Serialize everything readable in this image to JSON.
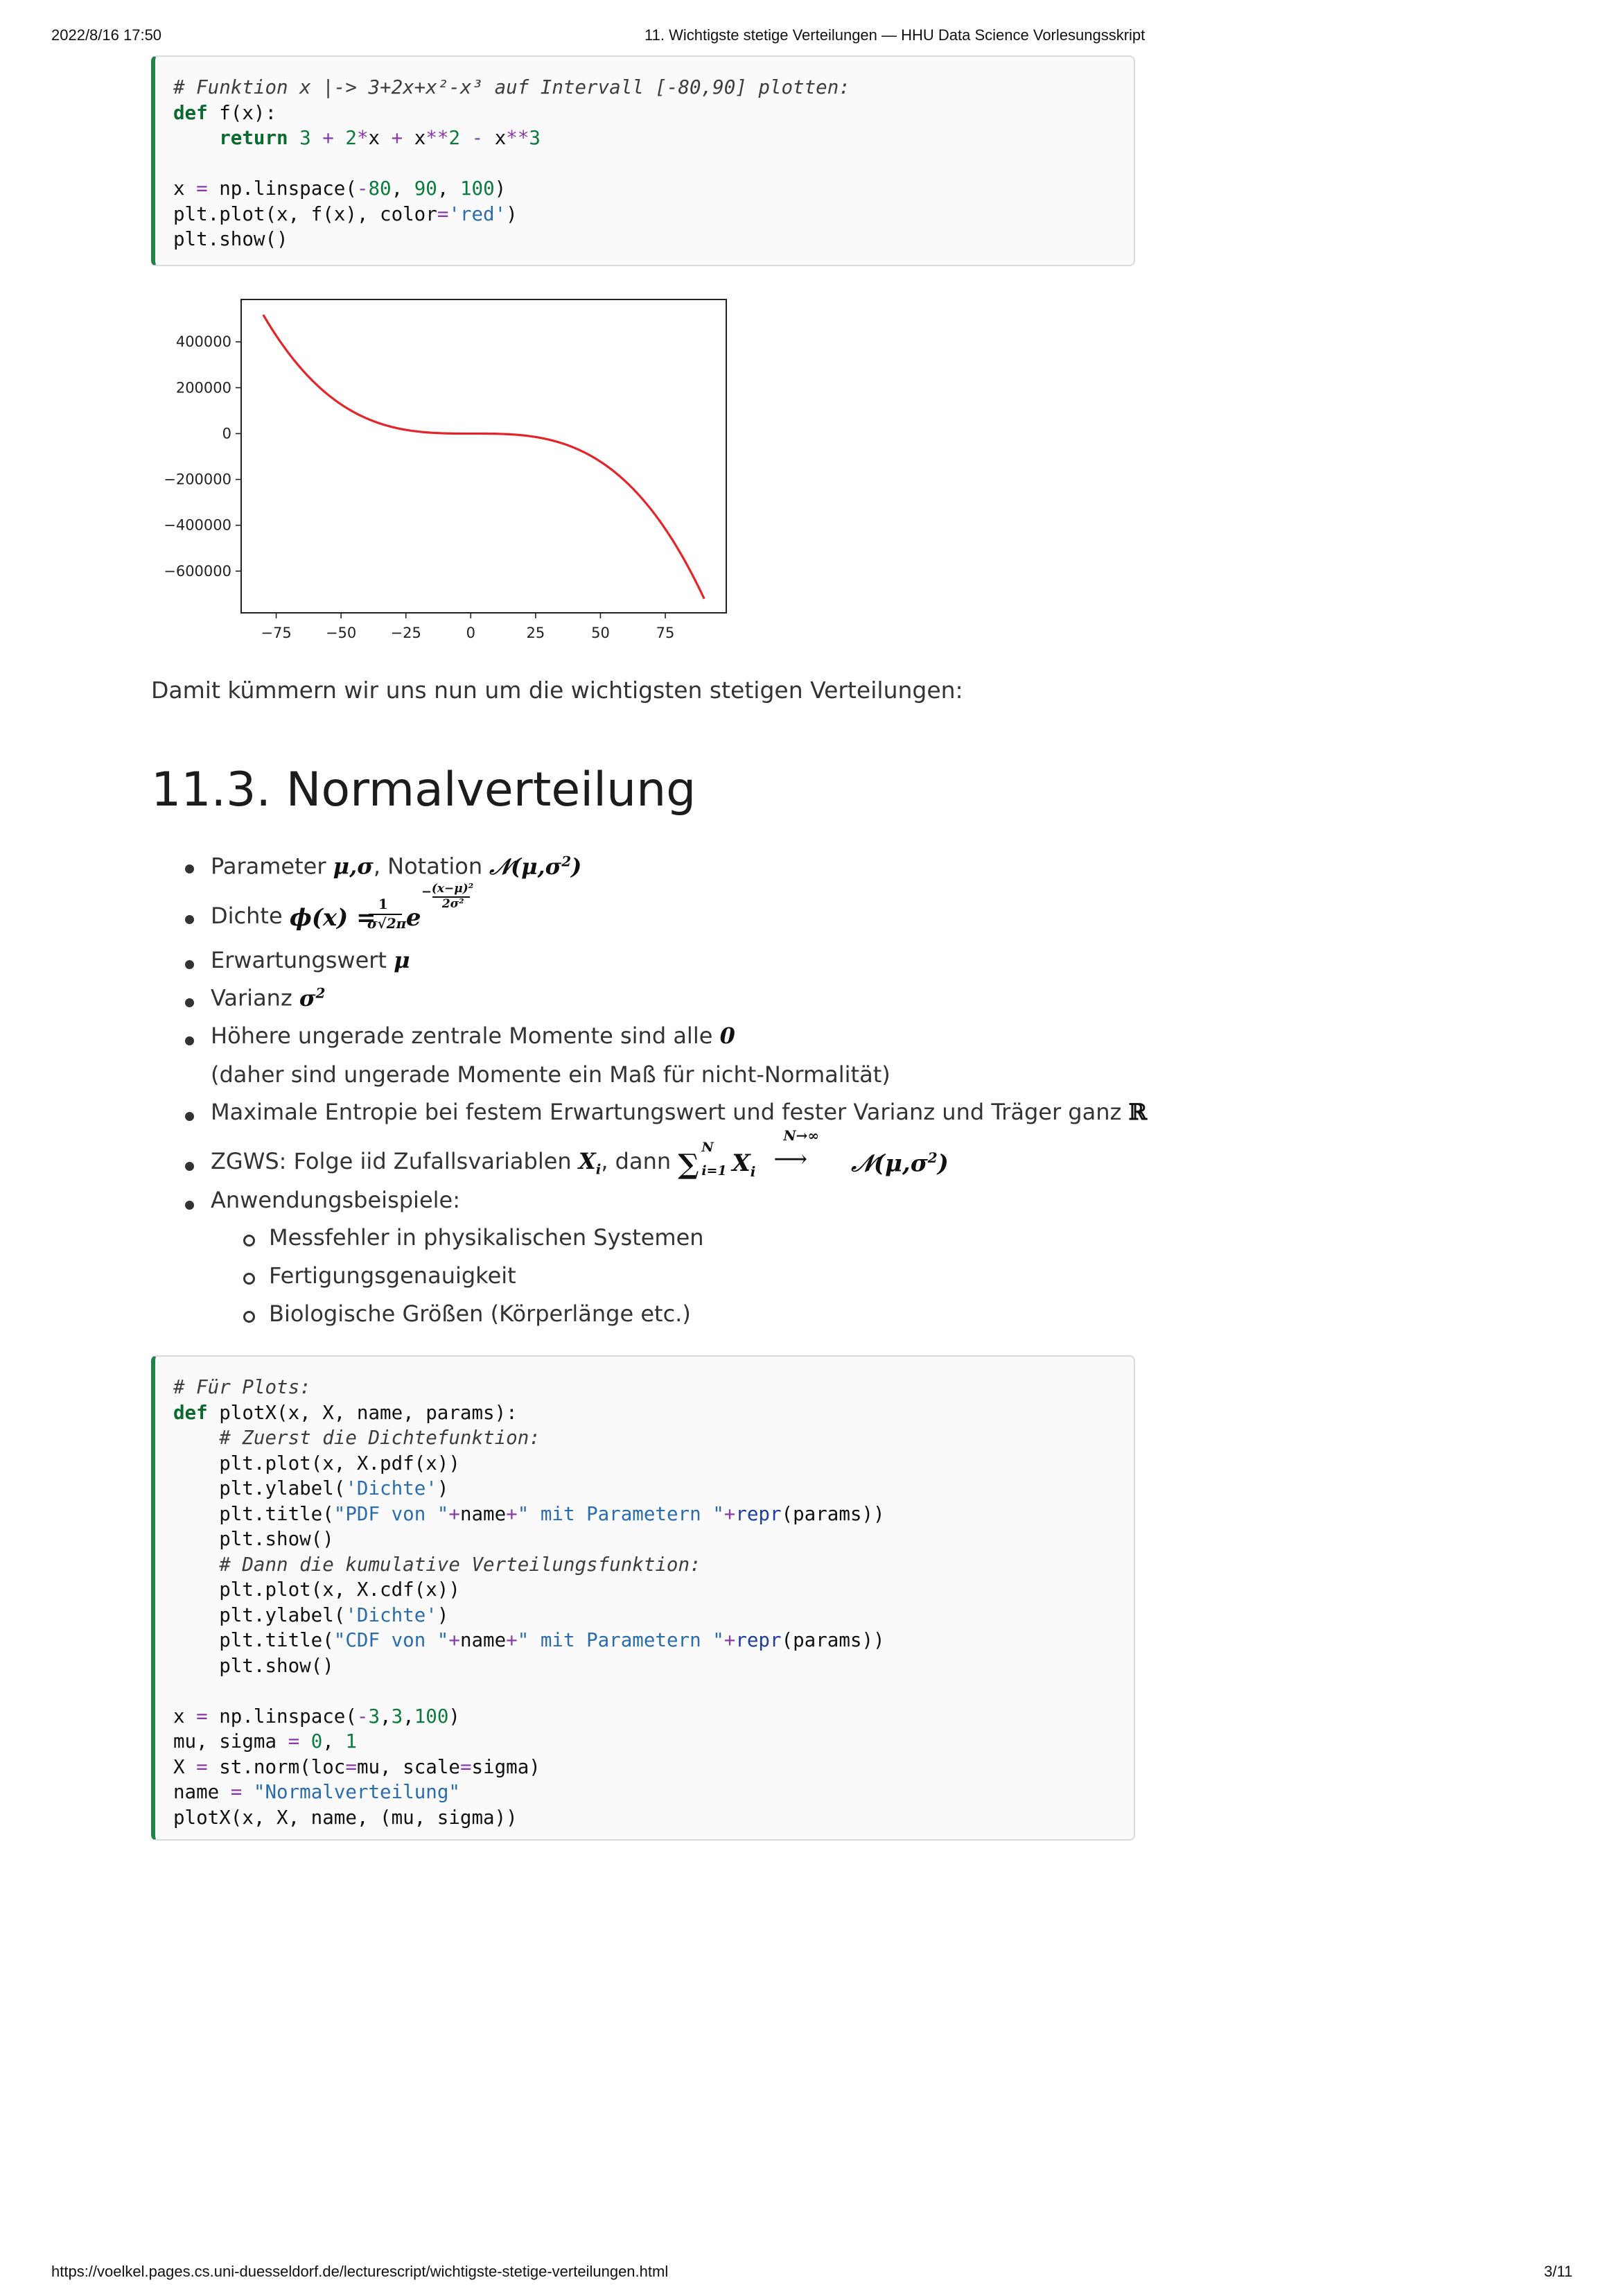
{
  "header": {
    "timestamp": "2022/8/16 17:50",
    "page_title": "11. Wichtigste stetige Verteilungen — HHU Data Science Vorlesungsskript"
  },
  "footer": {
    "url": "https://voelkel.pages.cs.uni-duesseldorf.de/lecturescript/wichtigste-stetige-verteilungen.html",
    "page_number": "3/11"
  },
  "code_block_1": [
    "# Funktion x |-> 3+2x+x²-x³ auf Intervall [-80,90] plotten:",
    "def f(x):",
    "    return 3 + 2*x + x**2 - x**3",
    "",
    "x = np.linspace(-80, 90, 100)",
    "plt.plot(x, f(x), color='red')",
    "plt.show()"
  ],
  "chart_data": {
    "type": "line",
    "title": "",
    "xlabel": "",
    "ylabel": "",
    "function": "3 + 2*x + x**2 - x**3",
    "x_range": [
      -80,
      90
    ],
    "num_points": 100,
    "line_color": "#e3242b",
    "x_ticks": [
      -75,
      -50,
      -25,
      0,
      25,
      50,
      75
    ],
    "x_tick_labels": [
      "−75",
      "−50",
      "−25",
      "0",
      "25",
      "50",
      "75"
    ],
    "y_ticks": [
      400000,
      200000,
      0,
      -200000,
      -400000,
      -600000
    ],
    "y_tick_labels": [
      "400000",
      "200000",
      "0",
      "−200000",
      "−400000",
      "−600000"
    ],
    "xlim": [
      -88.5,
      98.5
    ],
    "ylim": [
      -782000,
      585000
    ],
    "grid": false
  },
  "paragraph_after_plot": "Damit kümmern wir uns nun um die wichtigsten stetigen Verteilungen:",
  "section": {
    "title": "11.3. Normalverteilung",
    "bullets": {
      "b1_text": "Parameter ",
      "b1_mid": ", Notation ",
      "b2_text": "Dichte ",
      "b3_text": "Erwartungswert ",
      "b4_text": "Varianz ",
      "b5_text": "Höhere ungerade zentrale Momente sind alle ",
      "b5_cont": "(daher sind ungerade Momente ein Maß für nicht-Normalität)",
      "b6_text": "Maximale Entropie bei festem Erwartungswert und fester Varianz und Träger ganz ",
      "b7_text": "ZGWS: Folge iid Zufallsvariablen ",
      "b7_mid": ", dann ",
      "b8_text": "Anwendungsbeispiele:",
      "sub_items": [
        "Messfehler in physikalischen Systemen",
        "Fertigungsgenauigkeit",
        "Biologische Größen (Körperlänge etc.)"
      ]
    }
  },
  "code_block_2": [
    "# Für Plots:",
    "def plotX(x, X, name, params):",
    "    # Zuerst die Dichtefunktion:",
    "    plt.plot(x, X.pdf(x))",
    "    plt.ylabel('Dichte')",
    "    plt.title(\"PDF von \"+name+\" mit Parametern \"+repr(params))",
    "    plt.show()",
    "    # Dann die kumulative Verteilungsfunktion:",
    "    plt.plot(x, X.cdf(x))",
    "    plt.ylabel('Dichte')",
    "    plt.title(\"CDF von \"+name+\" mit Parametern \"+repr(params))",
    "    plt.show()",
    "",
    "x = np.linspace(-3,3,100)",
    "mu, sigma = 0, 1",
    "X = st.norm(loc=mu, scale=sigma)",
    "name = \"Normalverteilung\"",
    "plotX(x, X, name, (mu, sigma))"
  ]
}
